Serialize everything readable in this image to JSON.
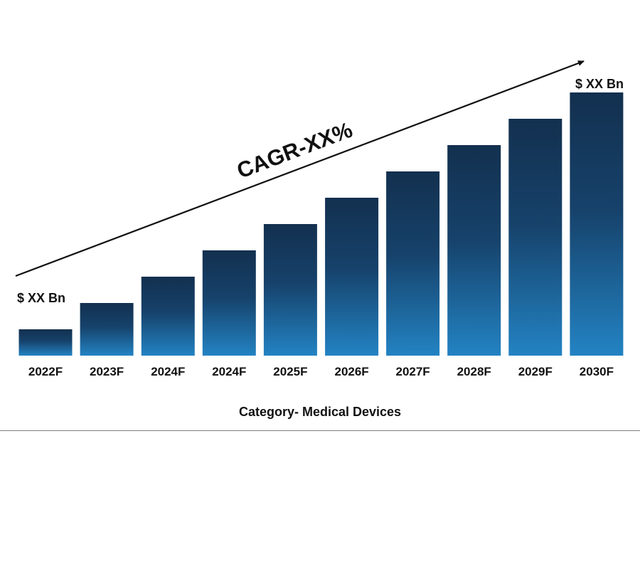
{
  "chart_data": {
    "type": "bar",
    "categories": [
      "2022F",
      "2023F",
      "2024F",
      "2024F",
      "2025F",
      "2026F",
      "2027F",
      "2028F",
      "2029F",
      "2030F"
    ],
    "values": [
      1,
      2,
      3,
      4,
      5,
      6,
      7,
      8,
      9,
      10
    ],
    "start_label": "$ XX Bn",
    "end_label": "$ XX Bn",
    "cagr_label": "CAGR-XX%",
    "category_label": "Category- Medical Devices",
    "colors": {
      "bar_top": "#13304f",
      "bar_bottom": "#2383c3",
      "arrow": "#111111",
      "divider": "#7f7f7f"
    }
  }
}
